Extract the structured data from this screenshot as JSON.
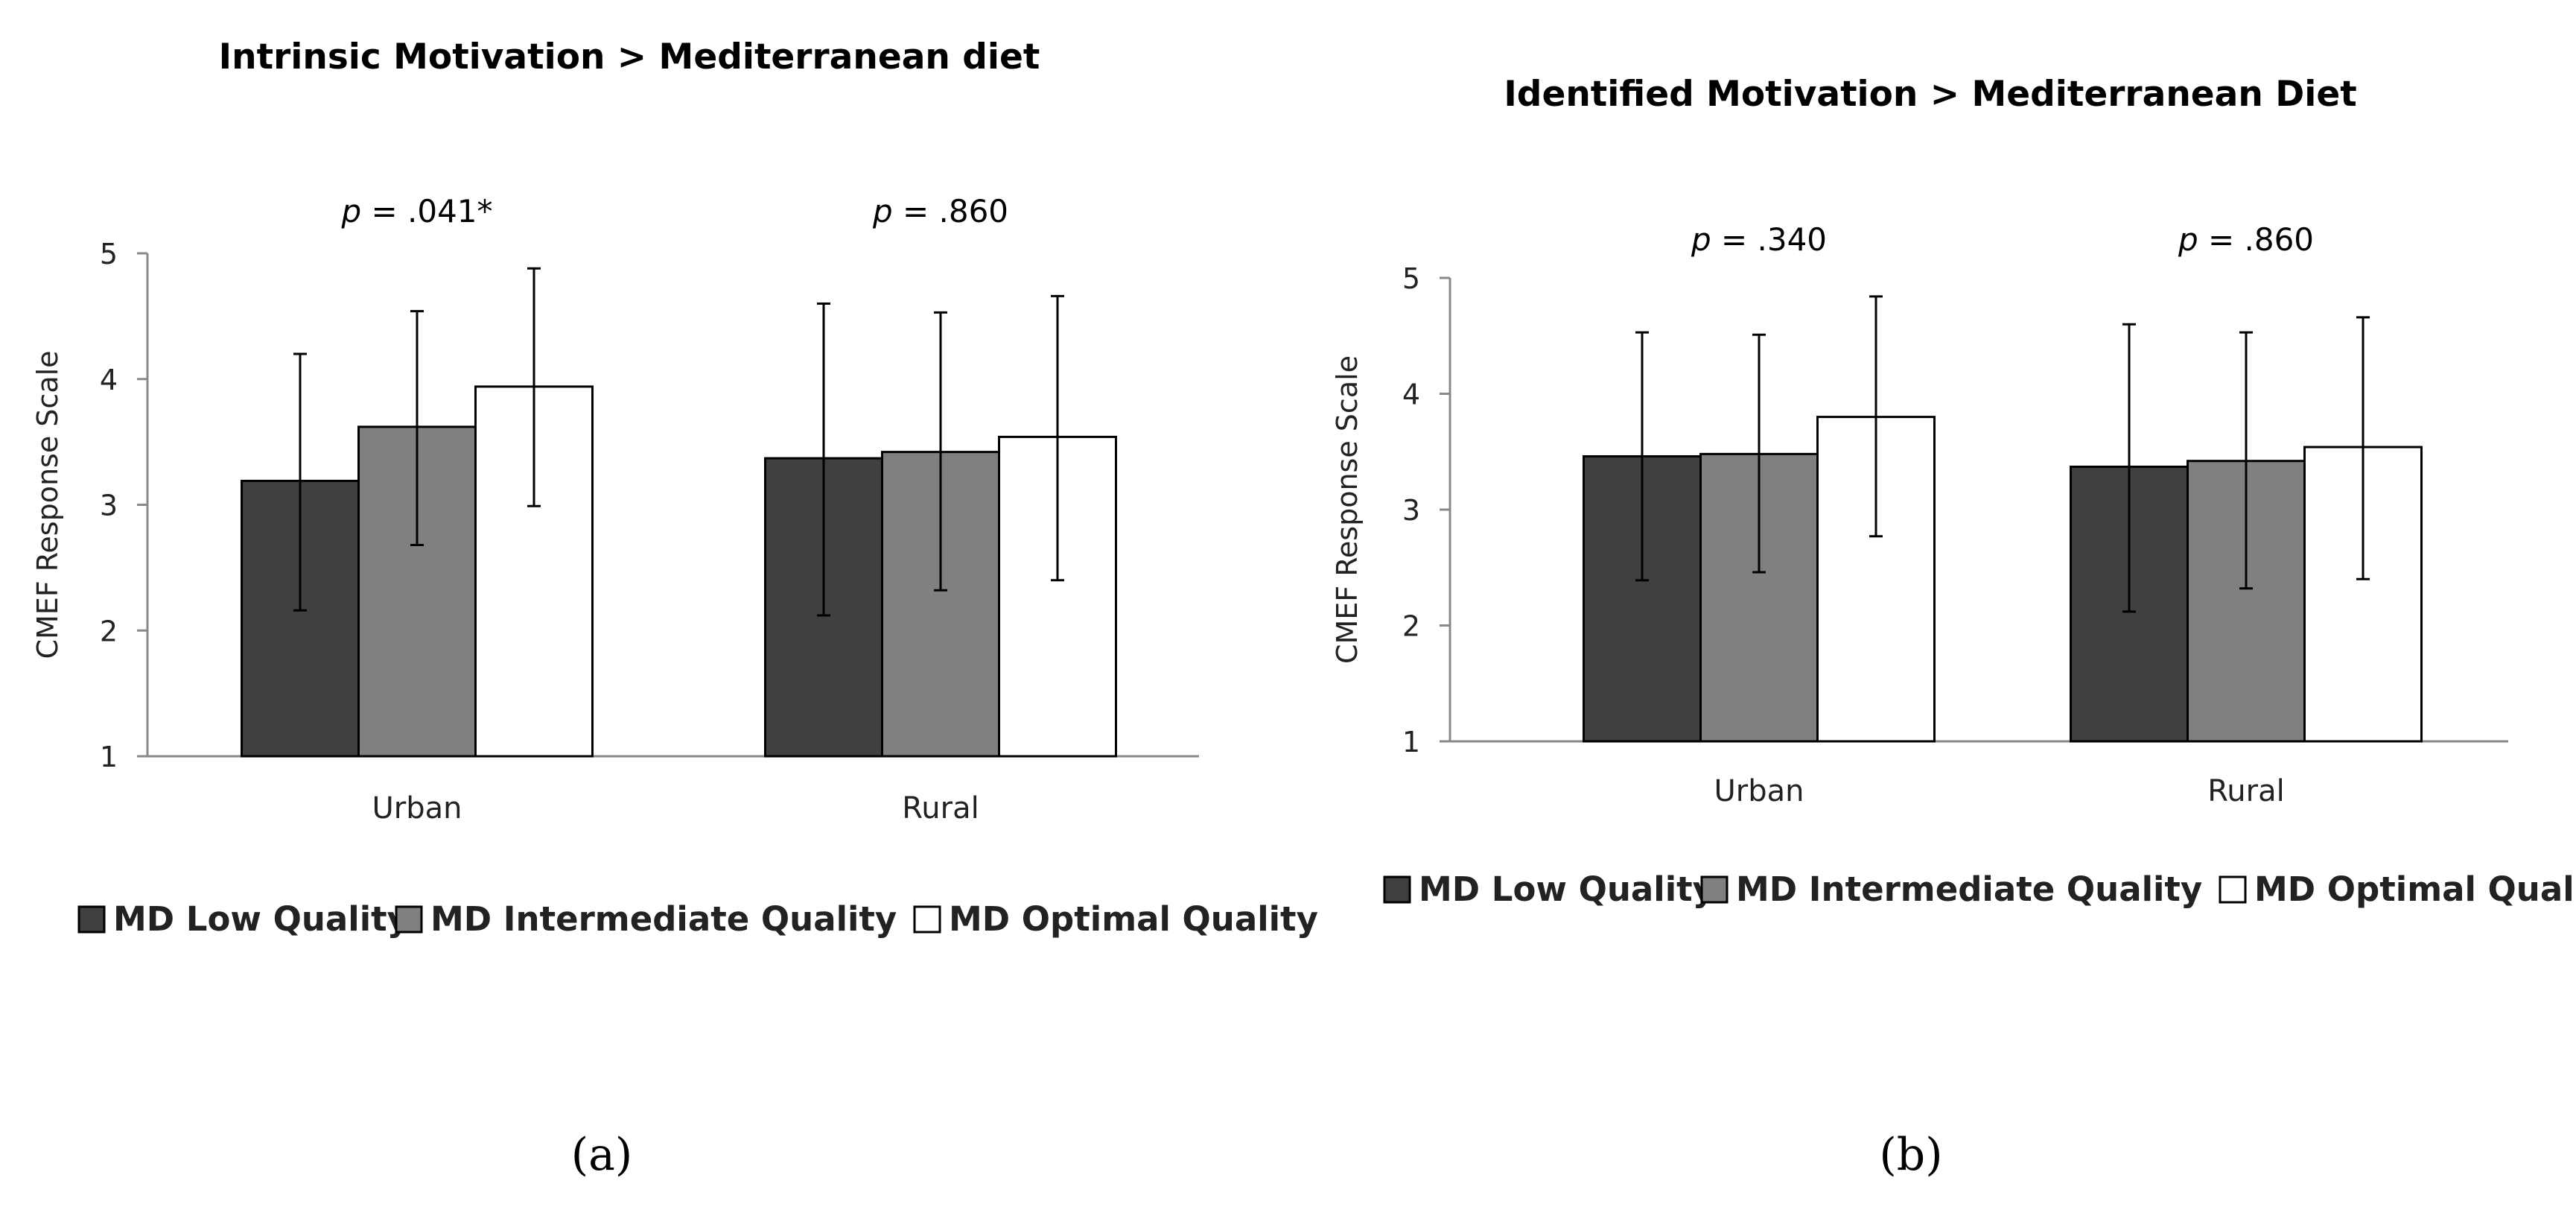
{
  "chart_data": [
    {
      "type": "bar",
      "panel_label": "(a)",
      "title": "Intrinsic Motivation > Mediterranean diet",
      "xlabel": "",
      "ylabel": "CMEF Response Scale",
      "ylim": [
        1,
        5
      ],
      "yticks": [
        "1",
        "2",
        "3",
        "4",
        "5"
      ],
      "grid": false,
      "legend_position": "bottom",
      "categories": [
        "Urban",
        "Rural"
      ],
      "p_values": [
        {
          "prefix": "p",
          "text": " = .041*"
        },
        {
          "prefix": "p",
          "text": " = .860"
        }
      ],
      "series": [
        {
          "name": "MD Low Quality",
          "color": "#404040",
          "values": [
            3.19,
            3.37
          ],
          "err_low": [
            2.16,
            2.12
          ],
          "err_high": [
            4.2,
            4.6
          ]
        },
        {
          "name": "MD Intermediate Quality",
          "color": "#808080",
          "values": [
            3.62,
            3.42
          ],
          "err_low": [
            2.68,
            2.32
          ],
          "err_high": [
            4.54,
            4.53
          ]
        },
        {
          "name": "MD Optimal Quality",
          "color": "#ffffff",
          "values": [
            3.94,
            3.54
          ],
          "err_low": [
            2.99,
            2.4
          ],
          "err_high": [
            4.88,
            4.66
          ]
        }
      ]
    },
    {
      "type": "bar",
      "panel_label": "(b)",
      "title": "Identified Motivation > Mediterranean Diet",
      "xlabel": "",
      "ylabel": "CMEF Response Scale",
      "ylim": [
        1,
        5
      ],
      "yticks": [
        "1",
        "2",
        "3",
        "4",
        "5"
      ],
      "grid": false,
      "legend_position": "bottom",
      "categories": [
        "Urban",
        "Rural"
      ],
      "p_values": [
        {
          "prefix": "p",
          "text": " = .340"
        },
        {
          "prefix": "p",
          "text": " = .860"
        }
      ],
      "series": [
        {
          "name": "MD Low Quality",
          "color": "#404040",
          "values": [
            3.46,
            3.37
          ],
          "err_low": [
            2.39,
            2.12
          ],
          "err_high": [
            4.53,
            4.6
          ]
        },
        {
          "name": "MD Intermediate Quality",
          "color": "#808080",
          "values": [
            3.48,
            3.42
          ],
          "err_low": [
            2.46,
            2.32
          ],
          "err_high": [
            4.51,
            4.53
          ]
        },
        {
          "name": "MD Optimal Quality",
          "color": "#ffffff",
          "values": [
            3.8,
            3.54
          ],
          "err_low": [
            2.77,
            2.4
          ],
          "err_high": [
            4.84,
            4.66
          ]
        }
      ]
    }
  ]
}
